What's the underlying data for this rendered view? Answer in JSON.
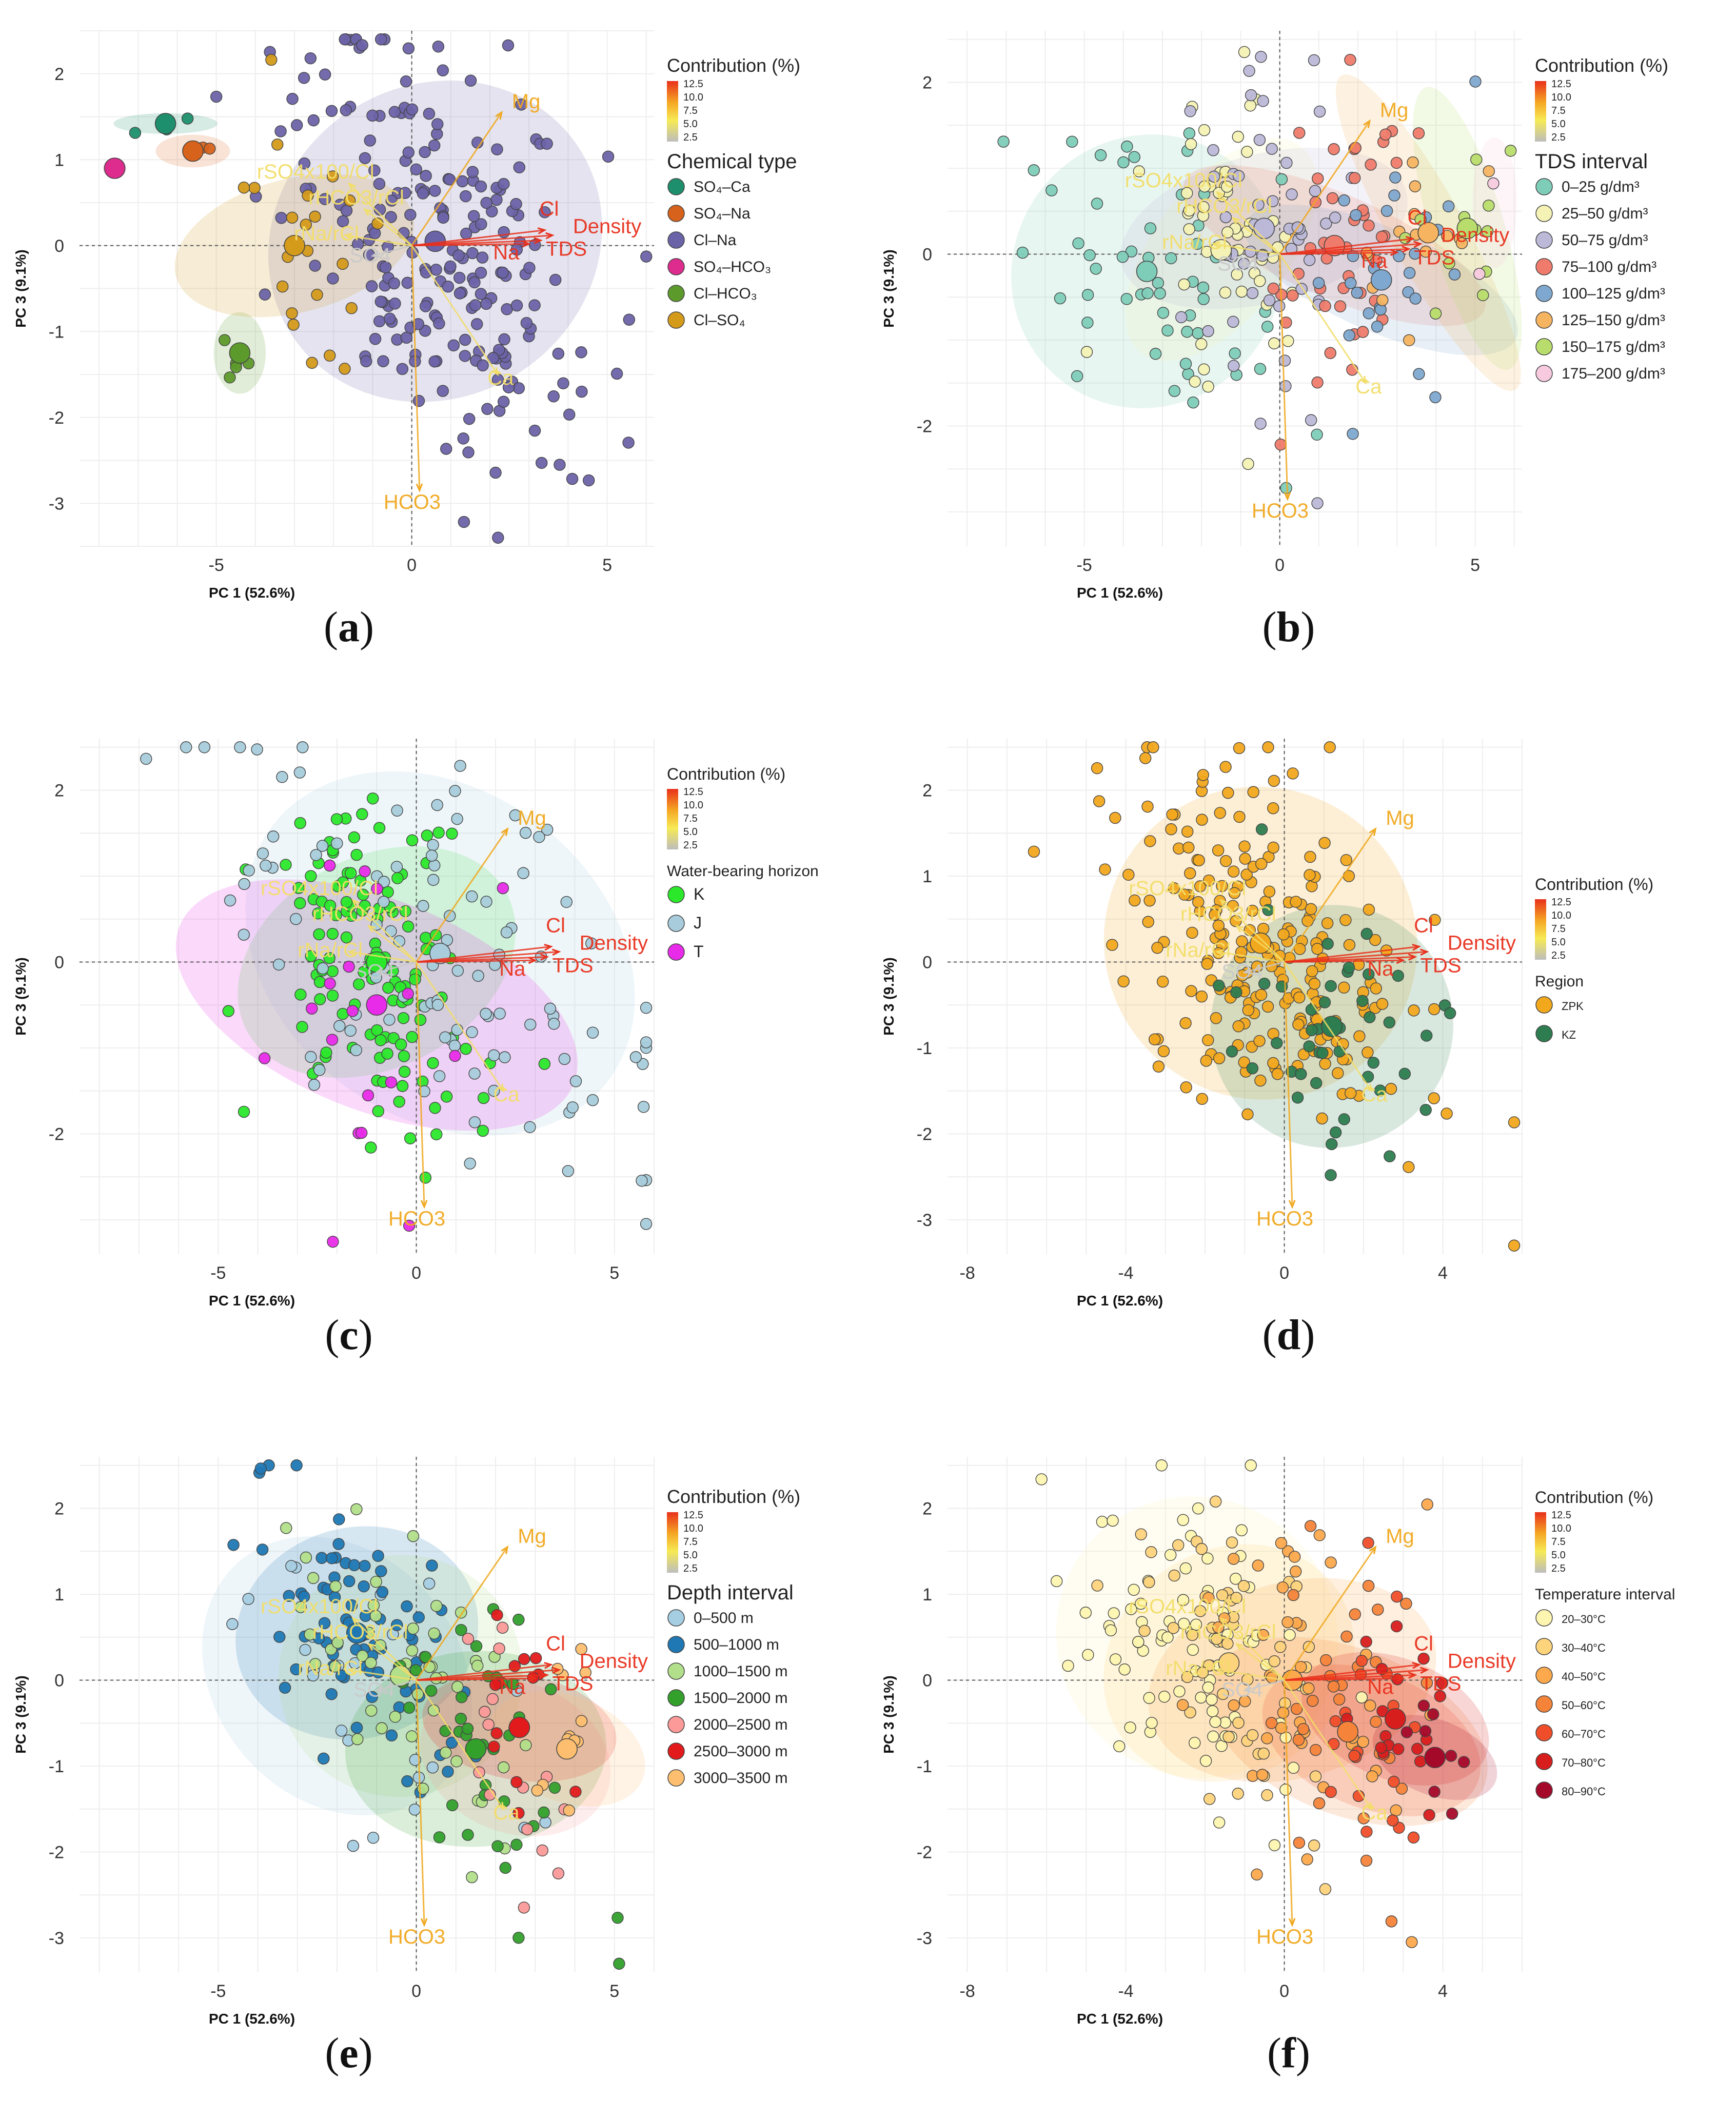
{
  "figure": {
    "panel_labels": [
      "a",
      "b",
      "c",
      "d",
      "e",
      "f"
    ]
  },
  "colors": {
    "arrow_red": "#e8301c",
    "arrow_orange": "#f0a81e",
    "arrow_yellow": "#f2dd68",
    "arrow_gray": "#c9c9c9",
    "grid": "#eeeeee",
    "refline": "#555555"
  },
  "chart_data": [
    {
      "panel": "a",
      "type": "scatter",
      "title": "",
      "xlabel": "PC 1 (52.6%)",
      "ylabel": "PC 3 (9.1%)",
      "xlim": [
        -8.5,
        6.2
      ],
      "ylim": [
        -3.5,
        2.5
      ],
      "xticks": [
        -5,
        0,
        5
      ],
      "yticks": [
        2,
        1,
        0,
        -1,
        -2,
        -3
      ],
      "legend_position": "right",
      "contribution_legend": {
        "title": "Contribution (%)",
        "values": [
          "12.5",
          "10.0",
          "7.5",
          "5.0",
          "2.5"
        ]
      },
      "group_legend": {
        "title": "Chemical type",
        "items": [
          {
            "label": "SO₄–Ca",
            "color": "#1e8f6c"
          },
          {
            "label": "SO₄–Na",
            "color": "#d6621c"
          },
          {
            "label": "Cl–Na",
            "color": "#6b63a8"
          },
          {
            "label": "SO₄–HCO₃",
            "color": "#dd2c8d"
          },
          {
            "label": "Cl–HCO₃",
            "color": "#5d9a2c"
          },
          {
            "label": "Cl–SO₄",
            "color": "#d49a1a"
          }
        ]
      },
      "variables": [
        {
          "name": "Mg",
          "x": 2.3,
          "y": 1.55
        },
        {
          "name": "Cl",
          "x": 3.4,
          "y": 0.18
        },
        {
          "name": "Density",
          "x": 3.6,
          "y": 0.12
        },
        {
          "name": "Na",
          "x": 3.0,
          "y": 0.02
        },
        {
          "name": "TDS",
          "x": 3.3,
          "y": 0.06
        },
        {
          "name": "rSO4x100/Cl",
          "x": -1.6,
          "y": 0.72
        },
        {
          "name": "rHCO3/rCl",
          "x": -1.2,
          "y": 0.42
        },
        {
          "name": "rNa/rCl",
          "x": -1.7,
          "y": 0.12
        },
        {
          "name": "SO4",
          "x": -1.0,
          "y": -0.12
        },
        {
          "name": "HCO3",
          "x": 0.2,
          "y": -2.85
        },
        {
          "name": "Ca",
          "x": 2.2,
          "y": -1.5
        }
      ]
    },
    {
      "panel": "b",
      "type": "scatter",
      "title": "",
      "xlabel": "PC 1 (52.6%)",
      "ylabel": "PC 3 (9.1%)",
      "xlim": [
        -8.5,
        6.2
      ],
      "ylim": [
        -3.4,
        2.6
      ],
      "xticks": [
        -5,
        0,
        5
      ],
      "yticks": [
        2,
        0,
        -2
      ],
      "legend_position": "right",
      "contribution_legend": {
        "title": "Contribution (%)",
        "values": [
          "12.5",
          "10.0",
          "7.5",
          "5.0",
          "2.5"
        ]
      },
      "group_legend": {
        "title": "TDS interval",
        "items": [
          {
            "label": "0–25 g/dm³",
            "color": "#7ecdb8"
          },
          {
            "label": "25–50 g/dm³",
            "color": "#f4f2b4"
          },
          {
            "label": "50–75 g/dm³",
            "color": "#bcb8d8"
          },
          {
            "label": "75–100 g/dm³",
            "color": "#ef7b6c"
          },
          {
            "label": "100–125 g/dm³",
            "color": "#7ea8cf"
          },
          {
            "label": "125–150 g/dm³",
            "color": "#f6b461"
          },
          {
            "label": "150–175 g/dm³",
            "color": "#b8dd6c"
          },
          {
            "label": "175–200 g/dm³",
            "color": "#f7cadf"
          }
        ]
      },
      "variables": [
        {
          "name": "Mg",
          "x": 2.3,
          "y": 1.55
        },
        {
          "name": "Cl",
          "x": 3.4,
          "y": 0.18
        },
        {
          "name": "Density",
          "x": 3.6,
          "y": 0.12
        },
        {
          "name": "Na",
          "x": 3.0,
          "y": 0.02
        },
        {
          "name": "TDS",
          "x": 3.3,
          "y": 0.06
        },
        {
          "name": "rSO4x100/Cl",
          "x": -1.6,
          "y": 0.72
        },
        {
          "name": "rHCO3/rCl",
          "x": -1.2,
          "y": 0.42
        },
        {
          "name": "rNa/rCl",
          "x": -1.7,
          "y": 0.12
        },
        {
          "name": "SO4",
          "x": -1.0,
          "y": -0.12
        },
        {
          "name": "HCO3",
          "x": 0.2,
          "y": -2.85
        },
        {
          "name": "Ca",
          "x": 2.2,
          "y": -1.5
        }
      ]
    },
    {
      "panel": "c",
      "type": "scatter",
      "title": "",
      "xlabel": "PC 1 (52.6%)",
      "ylabel": "PC 3 (9.1%)",
      "xlim": [
        -8.5,
        6.0
      ],
      "ylim": [
        -3.4,
        2.6
      ],
      "xticks": [
        -5,
        0,
        5
      ],
      "yticks": [
        2,
        0,
        -2
      ],
      "legend_position": "right",
      "contribution_legend": {
        "title": "Contribution (%)",
        "values": [
          "12.5",
          "10.0",
          "7.5",
          "5.0",
          "2.5"
        ]
      },
      "group_legend": {
        "title": "Water-bearing horizon",
        "items": [
          {
            "label": "K",
            "color": "#2be82b"
          },
          {
            "label": "J",
            "color": "#a8ccdb"
          },
          {
            "label": "T",
            "color": "#e82be8"
          }
        ]
      },
      "variables": [
        {
          "name": "Mg",
          "x": 2.3,
          "y": 1.55
        },
        {
          "name": "Cl",
          "x": 3.4,
          "y": 0.18
        },
        {
          "name": "Density",
          "x": 3.6,
          "y": 0.12
        },
        {
          "name": "Na",
          "x": 3.0,
          "y": 0.02
        },
        {
          "name": "TDS",
          "x": 3.3,
          "y": 0.06
        },
        {
          "name": "rSO4x100/Cl",
          "x": -1.6,
          "y": 0.72
        },
        {
          "name": "rHCO3/rCl",
          "x": -1.2,
          "y": 0.42
        },
        {
          "name": "rNa/rCl",
          "x": -1.7,
          "y": 0.12
        },
        {
          "name": "SO4",
          "x": -1.0,
          "y": -0.12
        },
        {
          "name": "HCO3",
          "x": 0.2,
          "y": -2.85
        },
        {
          "name": "Ca",
          "x": 2.2,
          "y": -1.5
        }
      ]
    },
    {
      "panel": "d",
      "type": "scatter",
      "title": "",
      "xlabel": "PC 1 (52.6%)",
      "ylabel": "PC 3 (9.1%)",
      "xlim": [
        -8.5,
        6.0
      ],
      "ylim": [
        -3.4,
        2.6
      ],
      "xticks": [
        -8,
        -4,
        0,
        4
      ],
      "yticks": [
        2,
        1,
        0,
        -1,
        -2,
        -3
      ],
      "legend_position": "right",
      "contribution_legend": {
        "title": "Contribution (%)",
        "values": [
          "12.5",
          "10.0",
          "7.5",
          "5.0",
          "2.5"
        ]
      },
      "group_legend": {
        "title": "Region",
        "items": [
          {
            "label": "ZPK",
            "color": "#f2a81d"
          },
          {
            "label": "KZ",
            "color": "#2e7d50"
          }
        ]
      },
      "variables": [
        {
          "name": "Mg",
          "x": 2.3,
          "y": 1.55
        },
        {
          "name": "Cl",
          "x": 3.4,
          "y": 0.18
        },
        {
          "name": "Density",
          "x": 3.6,
          "y": 0.12
        },
        {
          "name": "Na",
          "x": 3.0,
          "y": 0.02
        },
        {
          "name": "TDS",
          "x": 3.3,
          "y": 0.06
        },
        {
          "name": "rSO4x100/Cl",
          "x": -1.6,
          "y": 0.72
        },
        {
          "name": "rHCO3/rCl",
          "x": -1.2,
          "y": 0.42
        },
        {
          "name": "rNa/rCl",
          "x": -1.7,
          "y": 0.12
        },
        {
          "name": "SO4",
          "x": -1.0,
          "y": -0.12
        },
        {
          "name": "HCO3",
          "x": 0.2,
          "y": -2.85
        },
        {
          "name": "Ca",
          "x": 2.2,
          "y": -1.5
        }
      ]
    },
    {
      "panel": "e",
      "type": "scatter",
      "title": "",
      "xlabel": "PC 1 (52.6%)",
      "ylabel": "PC 3 (9.1%)",
      "xlim": [
        -8.5,
        6.0
      ],
      "ylim": [
        -3.4,
        2.6
      ],
      "xticks": [
        -5,
        0,
        5
      ],
      "yticks": [
        2,
        1,
        0,
        -1,
        -2,
        -3
      ],
      "legend_position": "right",
      "contribution_legend": {
        "title": "Contribution (%)",
        "values": [
          "12.5",
          "10.0",
          "7.5",
          "5.0",
          "2.5"
        ]
      },
      "group_legend": {
        "title": "Depth interval",
        "items": [
          {
            "label": "0–500 m",
            "color": "#a6cee3"
          },
          {
            "label": "500–1000 m",
            "color": "#1f78b4"
          },
          {
            "label": "1000–1500 m",
            "color": "#b2df8a"
          },
          {
            "label": "1500–2000 m",
            "color": "#33a02c"
          },
          {
            "label": "2000–2500 m",
            "color": "#fb9a99"
          },
          {
            "label": "2500–3000 m",
            "color": "#e31a1c"
          },
          {
            "label": "3000–3500 m",
            "color": "#fdbf6f"
          }
        ]
      },
      "variables": [
        {
          "name": "Mg",
          "x": 2.3,
          "y": 1.55
        },
        {
          "name": "Cl",
          "x": 3.4,
          "y": 0.18
        },
        {
          "name": "Density",
          "x": 3.6,
          "y": 0.12
        },
        {
          "name": "Na",
          "x": 3.0,
          "y": 0.02
        },
        {
          "name": "TDS",
          "x": 3.3,
          "y": 0.06
        },
        {
          "name": "rSO4x100/Cl",
          "x": -1.6,
          "y": 0.72
        },
        {
          "name": "rHCO3/rCl",
          "x": -1.2,
          "y": 0.42
        },
        {
          "name": "rNa/rCl",
          "x": -1.7,
          "y": 0.12
        },
        {
          "name": "SO4",
          "x": -1.0,
          "y": -0.12
        },
        {
          "name": "HCO3",
          "x": 0.2,
          "y": -2.85
        },
        {
          "name": "Ca",
          "x": 2.2,
          "y": -1.5
        }
      ]
    },
    {
      "panel": "f",
      "type": "scatter",
      "title": "",
      "xlabel": "PC 1 (52.6%)",
      "ylabel": "PC 3 (9.1%)",
      "xlim": [
        -8.5,
        6.0
      ],
      "ylim": [
        -3.4,
        2.6
      ],
      "xticks": [
        -8,
        -4,
        0,
        4
      ],
      "yticks": [
        2,
        1,
        0,
        -1,
        -2,
        -3
      ],
      "legend_position": "right",
      "contribution_legend": {
        "title": "Contribution (%)",
        "values": [
          "12.5",
          "10.0",
          "7.5",
          "5.0",
          "2.5"
        ]
      },
      "group_legend": {
        "title": "Temperature interval",
        "items": [
          {
            "label": "20–30°C",
            "color": "#fdf5b0"
          },
          {
            "label": "30–40°C",
            "color": "#fdd37c"
          },
          {
            "label": "40–50°C",
            "color": "#fca94d"
          },
          {
            "label": "50–60°C",
            "color": "#f5843a"
          },
          {
            "label": "60–70°C",
            "color": "#f04e2a"
          },
          {
            "label": "70–80°C",
            "color": "#d81d1d"
          },
          {
            "label": "80–90°C",
            "color": "#a5092a"
          }
        ]
      },
      "variables": [
        {
          "name": "Mg",
          "x": 2.3,
          "y": 1.55
        },
        {
          "name": "Cl",
          "x": 3.4,
          "y": 0.18
        },
        {
          "name": "Density",
          "x": 3.6,
          "y": 0.12
        },
        {
          "name": "Na",
          "x": 3.0,
          "y": 0.02
        },
        {
          "name": "TDS",
          "x": 3.3,
          "y": 0.06
        },
        {
          "name": "rSO4x100/Cl",
          "x": -1.6,
          "y": 0.72
        },
        {
          "name": "rHCO3/rCl",
          "x": -1.2,
          "y": 0.42
        },
        {
          "name": "rNa/rCl",
          "x": -1.7,
          "y": 0.12
        },
        {
          "name": "SO4",
          "x": -1.0,
          "y": -0.12
        },
        {
          "name": "HCO3",
          "x": 0.2,
          "y": -2.85
        },
        {
          "name": "Ca",
          "x": 2.2,
          "y": -1.5
        }
      ]
    }
  ]
}
